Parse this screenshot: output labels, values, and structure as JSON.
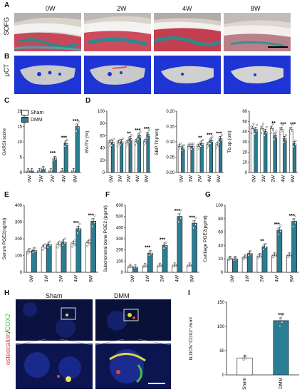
{
  "panels": {
    "A": {
      "label": "A",
      "row_label": "SOFG",
      "columns": [
        "0W",
        "2W",
        "4W",
        "8W"
      ]
    },
    "B": {
      "label": "B",
      "row_label": "μCT"
    },
    "C": {
      "label": "C"
    },
    "D": {
      "label": "D"
    },
    "E": {
      "label": "E"
    },
    "F": {
      "label": "F"
    },
    "G": {
      "label": "G"
    },
    "H": {
      "label": "H",
      "col_sham": "Sham",
      "col_dmm": "DMM",
      "stain_osteocalcin": "osteocalcin",
      "stain_slash": "/",
      "stain_cox2": "COX2"
    },
    "I": {
      "label": "I"
    }
  },
  "legend": {
    "sham": "Sham",
    "dmm": "DMM"
  },
  "colors": {
    "sham": "#ffffff",
    "dmm": "#2a7d92",
    "stroke": "#222222",
    "dot": "#ffffff",
    "green": "#3fbf46",
    "red": "#e03b2c",
    "blue": "#2136c8"
  },
  "chart_data": [
    {
      "id": "C",
      "type": "bar",
      "ylabel": "OARSI score",
      "ylim": [
        0,
        20
      ],
      "yticks": [
        0,
        5,
        10,
        15,
        20
      ],
      "categories": [
        "0W",
        "1W",
        "2W",
        "4W",
        "8W"
      ],
      "series": [
        {
          "name": "Sham",
          "values": [
            0.5,
            0.5,
            0.5,
            0.5,
            0.5
          ]
        },
        {
          "name": "DMM",
          "values": [
            0.5,
            1.2,
            4.5,
            9.5,
            15
          ]
        }
      ],
      "annotations": [
        "",
        "",
        "***",
        "***",
        "***"
      ]
    },
    {
      "id": "D1",
      "type": "bar",
      "ylabel": "BV/TV (%)",
      "ylim": [
        0,
        100
      ],
      "yticks": [
        0,
        20,
        40,
        60,
        80,
        100
      ],
      "categories": [
        "0W",
        "1W",
        "2W",
        "4W",
        "8W"
      ],
      "series": [
        {
          "name": "Sham",
          "values": [
            48,
            48,
            48,
            50,
            50
          ]
        },
        {
          "name": "DMM",
          "values": [
            49,
            50,
            55,
            60,
            62
          ]
        }
      ],
      "annotations": [
        "",
        "",
        "**",
        "***",
        "***"
      ]
    },
    {
      "id": "D2",
      "type": "bar",
      "ylabel": "SBP Th(mm)",
      "ylim": [
        0,
        0.2
      ],
      "yticks": [
        0.0,
        0.05,
        0.1,
        0.15,
        0.2
      ],
      "categories": [
        "0W",
        "1W",
        "2W",
        "4W",
        "8W"
      ],
      "series": [
        {
          "name": "Sham",
          "values": [
            0.085,
            0.085,
            0.085,
            0.09,
            0.09
          ]
        },
        {
          "name": "DMM",
          "values": [
            0.08,
            0.085,
            0.095,
            0.105,
            0.11
          ]
        }
      ],
      "annotations": [
        "",
        "",
        "**",
        "***",
        "***"
      ]
    },
    {
      "id": "D3",
      "type": "bar",
      "ylabel": "Tb.sp (um)",
      "ylim": [
        0,
        60
      ],
      "yticks": [
        0,
        10,
        20,
        30,
        40,
        50,
        60
      ],
      "categories": [
        "0W",
        "1W",
        "2W",
        "4W",
        "8W"
      ],
      "series": [
        {
          "name": "Sham",
          "values": [
            43,
            43,
            43,
            42,
            42
          ]
        },
        {
          "name": "DMM",
          "values": [
            42,
            40,
            36,
            33,
            28
          ]
        }
      ],
      "annotations": [
        "",
        "",
        "**",
        "***",
        "***"
      ]
    },
    {
      "id": "E",
      "type": "bar",
      "ylabel": "Serum PGE2(ng/ml)",
      "ylim": [
        0,
        400
      ],
      "yticks": [
        0,
        100,
        200,
        300,
        400
      ],
      "categories": [
        "0W",
        "1W",
        "2W",
        "4W",
        "8W"
      ],
      "series": [
        {
          "name": "Sham",
          "values": [
            125,
            150,
            165,
            170,
            175
          ]
        },
        {
          "name": "DMM",
          "values": [
            130,
            165,
            180,
            260,
            305
          ]
        }
      ],
      "annotations": [
        "",
        "",
        "",
        "***",
        "***"
      ]
    },
    {
      "id": "F",
      "type": "bar",
      "ylabel": "Subchondral bone PGE2 (pg/ml)",
      "ylim": [
        0,
        600
      ],
      "yticks": [
        0,
        100,
        200,
        300,
        400,
        500,
        600
      ],
      "categories": [
        "0W",
        "1W",
        "2W",
        "4W",
        "8W"
      ],
      "series": [
        {
          "name": "Sham",
          "values": [
            50,
            55,
            58,
            60,
            60
          ]
        },
        {
          "name": "DMM",
          "values": [
            45,
            170,
            240,
            500,
            440
          ]
        }
      ],
      "annotations": [
        "",
        "***",
        "***",
        "***",
        "***"
      ]
    },
    {
      "id": "G",
      "type": "bar",
      "ylabel": "Cartilage PGE2(pg/ml)",
      "ylim": [
        0,
        100
      ],
      "yticks": [
        0,
        20,
        40,
        60,
        80,
        100
      ],
      "categories": [
        "0W",
        "1W",
        "2W",
        "4W",
        "8W"
      ],
      "series": [
        {
          "name": "Sham",
          "values": [
            20,
            22,
            24,
            25,
            25
          ]
        },
        {
          "name": "DMM",
          "values": [
            20,
            28,
            38,
            63,
            76
          ]
        }
      ],
      "annotations": [
        "",
        "",
        "**",
        "***",
        "***"
      ]
    },
    {
      "id": "I",
      "type": "bar",
      "ylabel": "N.OCN⁺COX2⁺/mm²",
      "ylim": [
        0,
        150
      ],
      "yticks": [
        0,
        50,
        100,
        150
      ],
      "categories": [
        "Sham",
        "DMM"
      ],
      "series": [
        {
          "name": "",
          "values": [
            35,
            112
          ]
        }
      ],
      "annotations": [
        "",
        "***"
      ]
    }
  ]
}
